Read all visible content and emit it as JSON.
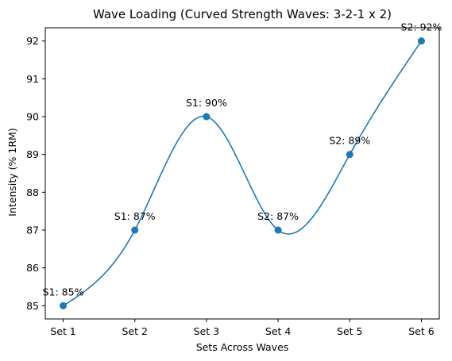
{
  "chart_data": {
    "type": "line",
    "title": "Wave Loading (Curved Strength Waves: 3-2-1 x 2)",
    "xlabel": "Sets Across Waves",
    "ylabel": "Intensity (% 1RM)",
    "categories": [
      "Set 1",
      "Set 2",
      "Set 3",
      "Set 4",
      "Set 5",
      "Set 6"
    ],
    "series": [
      {
        "values": [
          85,
          87,
          90,
          87,
          89,
          92
        ],
        "labels": [
          "S1: 85%",
          "S1: 87%",
          "S1: 90%",
          "S2: 87%",
          "S2: 89%",
          "S2: 92%"
        ],
        "color": "#1f77b4",
        "smoothed": true
      }
    ],
    "yticks": [
      85,
      86,
      87,
      88,
      89,
      90,
      91,
      92
    ],
    "ylim": [
      84.65,
      92.35
    ],
    "grid": false,
    "legend": false
  }
}
